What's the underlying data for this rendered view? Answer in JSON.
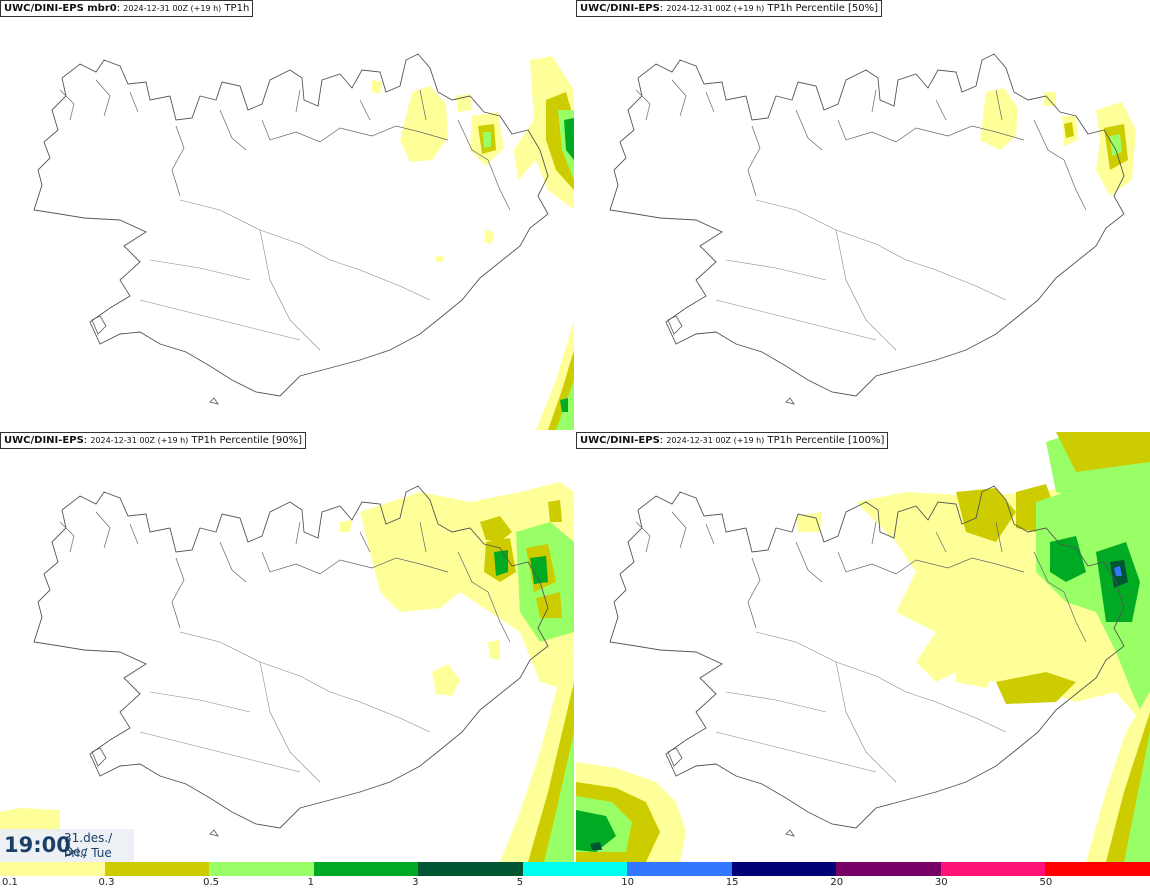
{
  "panels": [
    {
      "title_src": "UWC/DINI-EPS mbr0",
      "title_run": "2024-12-31 00Z (+19 h)",
      "title_field": "TP1h"
    },
    {
      "title_src": "UWC/DINI-EPS",
      "title_run": "2024-12-31 00Z (+19 h)",
      "title_field": "TP1h Percentile [50%]"
    },
    {
      "title_src": "UWC/DINI-EPS",
      "title_run": "2024-12-31 00Z (+19 h)",
      "title_field": "TP1h Percentile [90%]"
    },
    {
      "title_src": "UWC/DINI-EPS",
      "title_run": "2024-12-31 00Z (+19 h)",
      "title_field": "TP1h Percentile [100%]"
    }
  ],
  "valid_time": {
    "clock": "19:00",
    "date": "31.des./ Dec",
    "weekday": "Þri./ Tue"
  },
  "legend": {
    "labels": [
      "0.1",
      "0.3",
      "0.5",
      "1",
      "3",
      "5",
      "10",
      "15",
      "20",
      "30",
      "50"
    ],
    "colors": [
      "#ffff99",
      "#cccc00",
      "#99ff66",
      "#00aa22",
      "#005533",
      "#00ffee",
      "#3377ff",
      "#000077",
      "#770066",
      "#ff1177",
      "#ff0000"
    ]
  }
}
